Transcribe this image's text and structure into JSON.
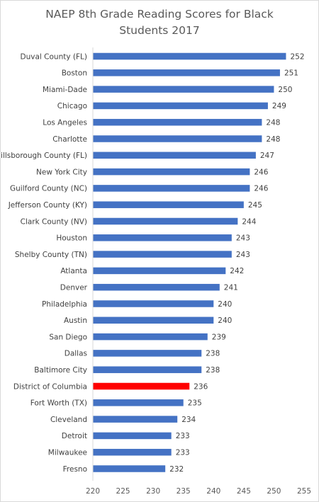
{
  "chart_data": {
    "type": "bar",
    "orientation": "horizontal",
    "title_lines": [
      "NAEP 8th Grade Reading Scores for Black",
      "Students 2017"
    ],
    "categories": [
      "Duval County (FL)",
      "Boston",
      "Miami-Dade",
      "Chicago",
      "Los Angeles",
      "Charlotte",
      "Hillsborough County (FL)",
      "New York City",
      "Guilford County (NC)",
      "Jefferson County (KY)",
      "Clark County (NV)",
      "Houston",
      "Shelby County (TN)",
      "Atlanta",
      "Denver",
      "Philadelphia",
      "Austin",
      "San Diego",
      "Dallas",
      "Baltimore City",
      "District of Columbia",
      "Fort Worth (TX)",
      "Cleveland",
      "Detroit",
      "Milwaukee",
      "Fresno"
    ],
    "values": [
      252,
      251,
      250,
      249,
      248,
      248,
      247,
      246,
      246,
      245,
      244,
      243,
      243,
      242,
      241,
      240,
      240,
      239,
      238,
      238,
      236,
      235,
      234,
      233,
      233,
      232
    ],
    "data_labels": [
      "252",
      "251",
      "250",
      "249",
      "248",
      "248",
      "247",
      "246",
      "246",
      "245",
      "244",
      "243",
      "243",
      "242",
      "241",
      "240",
      "240",
      "239",
      "238",
      "238",
      "236",
      "235",
      "234",
      "233",
      "233",
      "232"
    ],
    "xlim": [
      220,
      255
    ],
    "x_ticks": [
      220,
      225,
      230,
      235,
      240,
      245,
      250,
      255
    ],
    "x_tick_labels": [
      "220",
      "225",
      "230",
      "235",
      "240",
      "245",
      "250",
      "255"
    ],
    "highlight_category": "District of Columbia",
    "grid": false,
    "legend": "none",
    "colors": {
      "bar": "#4472c4",
      "highlight": "#ff0000",
      "axis": "#d9d9d9",
      "text": "#404040"
    }
  }
}
